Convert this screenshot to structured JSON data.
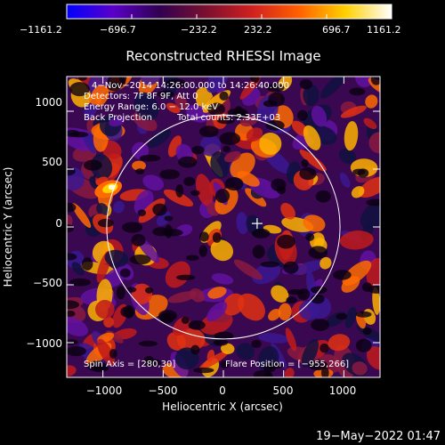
{
  "chart_data": {
    "type": "heatmap",
    "title": "Reconstructed RHESSI Image",
    "xlabel": "Heliocentric X (arcsec)",
    "ylabel": "Heliocentric Y (arcsec)",
    "xlim": [
      -1300,
      1300
    ],
    "ylim": [
      -1300,
      1300
    ],
    "x_ticks": [
      -1000,
      -500,
      0,
      500,
      1000
    ],
    "x_tick_labels": [
      "−1000",
      "−500",
      "0",
      "500",
      "1000"
    ],
    "y_ticks": [
      1000,
      500,
      0,
      -500,
      -1000
    ],
    "y_tick_labels": [
      "1000",
      "500",
      "0",
      "−500",
      "−1000"
    ],
    "colorbar": {
      "min": -1161.2,
      "max": 1161.2,
      "tick_values": [
        -1161.2,
        -696.7,
        -232.2,
        232.2,
        696.7,
        1161.2
      ],
      "tick_labels": [
        "−1161.2",
        "−696.7",
        "−232.2",
        "232.2",
        "696.7",
        "1161.2"
      ],
      "colors": [
        "#0000ff",
        "#5a00c8",
        "#300050",
        "#7a1030",
        "#d02020",
        "#ff6000",
        "#ffd000",
        "#ffffff"
      ]
    },
    "info_lines": [
      "4−Nov−2014 14:26:00.000 to 14:26:40.000",
      "Detectors: 7F 8F 9F, Att 0",
      "Energy Range: 6.0 − 12.0 keV"
    ],
    "back_projection": "Back Projection",
    "total_counts": "Total counts: 2.33E+03",
    "spin_axis": "Spin Axis = [280,30]",
    "flare_position": "Flare Position = [−955,266]",
    "solar_disk": {
      "center": [
        0,
        0
      ],
      "radius_arcsec": 968
    },
    "marker": {
      "x": 280,
      "y": 30
    }
  },
  "footer_timestamp": "19−May−2022 01:47"
}
